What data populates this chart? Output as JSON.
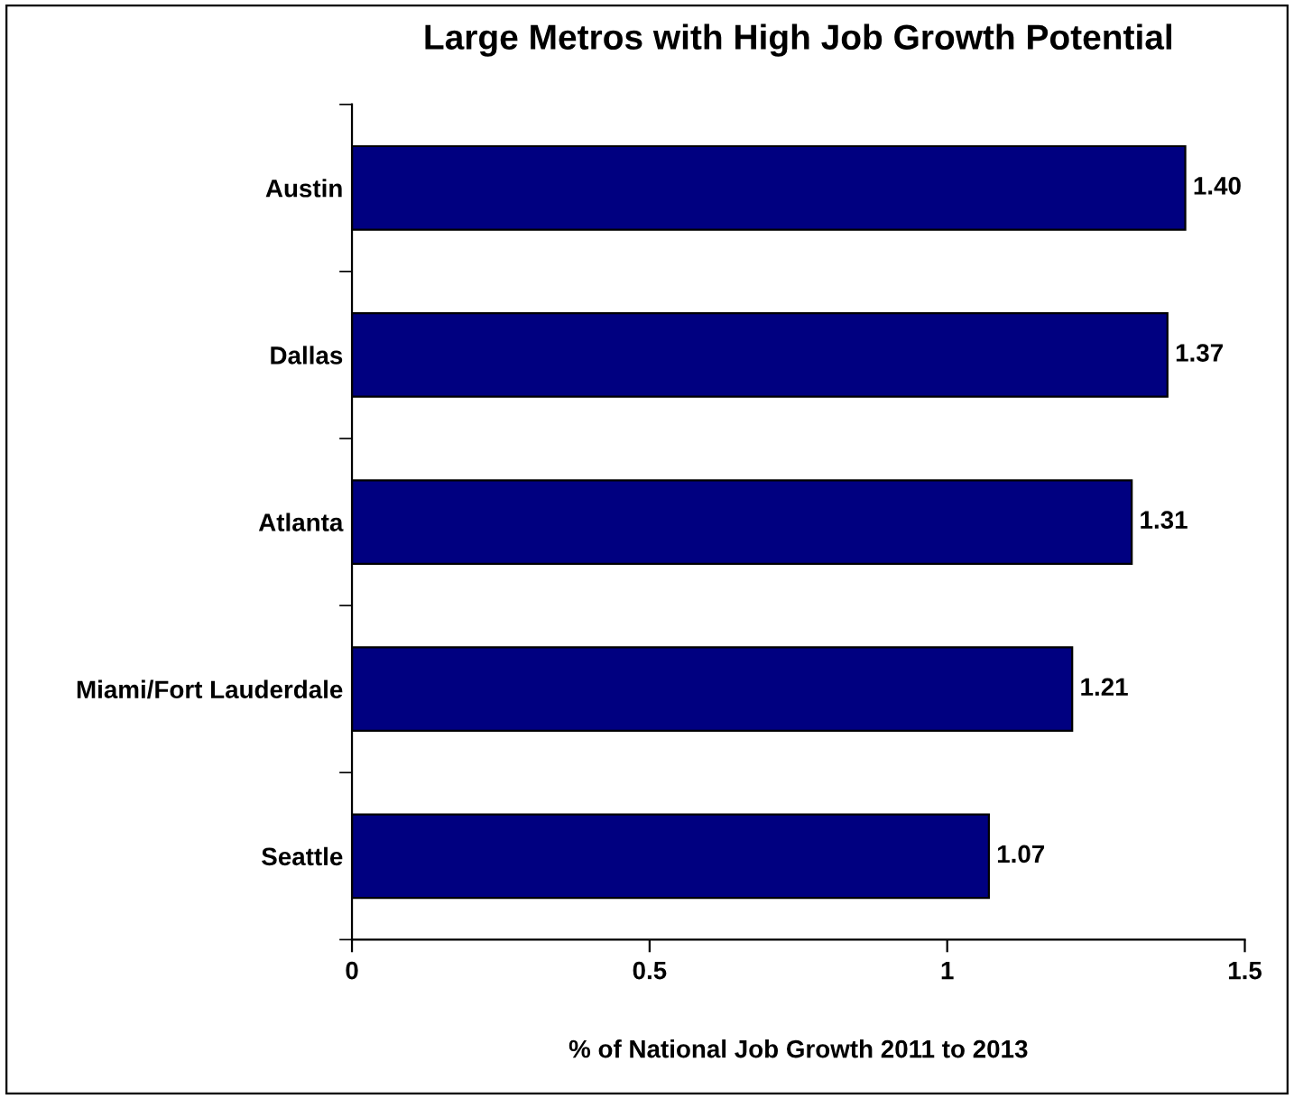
{
  "chart_data": {
    "type": "bar",
    "orientation": "horizontal",
    "title": "Large Metros with High Job Growth Potential",
    "xlabel": "% of National Job Growth 2011 to 2013",
    "categories": [
      "Austin",
      "Dallas",
      "Atlanta",
      "Miami/Fort Lauderdale",
      "Seattle"
    ],
    "values": [
      1.4,
      1.37,
      1.31,
      1.21,
      1.07
    ],
    "value_labels": [
      "1.40",
      "1.37",
      "1.31",
      "1.21",
      "1.07"
    ],
    "color": "#000080",
    "xlim": [
      0,
      1.5
    ],
    "xticks": [
      0,
      0.5,
      1,
      1.5
    ],
    "grid": false,
    "legend": false
  }
}
